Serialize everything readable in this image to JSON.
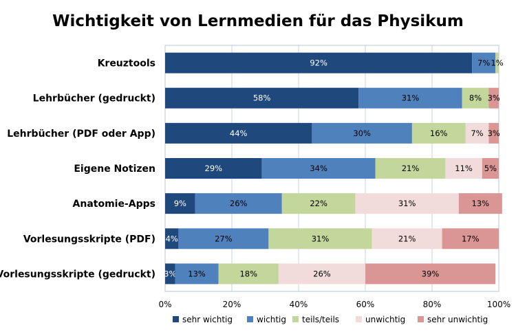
{
  "chart_data": {
    "type": "bar",
    "orientation": "horizontal",
    "stacked": true,
    "percent": true,
    "title": "Wichtigkeit von Lernmedien für das Physikum",
    "categories": [
      "Kreuztools",
      "Lehrbücher (gedruckt)",
      "Lehrbücher (PDF oder App)",
      "Eigene Notizen",
      "Anatomie-Apps",
      "Vorlesungsskripte (PDF)",
      "Vorlesungsskripte (gedruckt)"
    ],
    "series": [
      {
        "name": "sehr wichtig",
        "color": "#1f497d",
        "label_color": "#ffffff",
        "values": [
          92,
          58,
          44,
          29,
          9,
          4,
          3
        ]
      },
      {
        "name": "wichtig",
        "color": "#4f81bd",
        "label_color": "#000000",
        "values": [
          7,
          31,
          30,
          34,
          26,
          27,
          13
        ]
      },
      {
        "name": "teils/teils",
        "color": "#c3d69b",
        "label_color": "#000000",
        "values": [
          1,
          8,
          16,
          21,
          22,
          31,
          18
        ]
      },
      {
        "name": "unwichtig",
        "color": "#f2dcdb",
        "label_color": "#000000",
        "values": [
          0,
          0,
          7,
          11,
          31,
          21,
          26
        ]
      },
      {
        "name": "sehr unwichtig",
        "color": "#d99694",
        "label_color": "#000000",
        "values": [
          0,
          3,
          3,
          5,
          13,
          17,
          39
        ]
      }
    ],
    "xlim": [
      0,
      100
    ],
    "xticks": [
      "0%",
      "20%",
      "40%",
      "60%",
      "80%",
      "100%"
    ],
    "grid": true,
    "legend": "bottom"
  }
}
